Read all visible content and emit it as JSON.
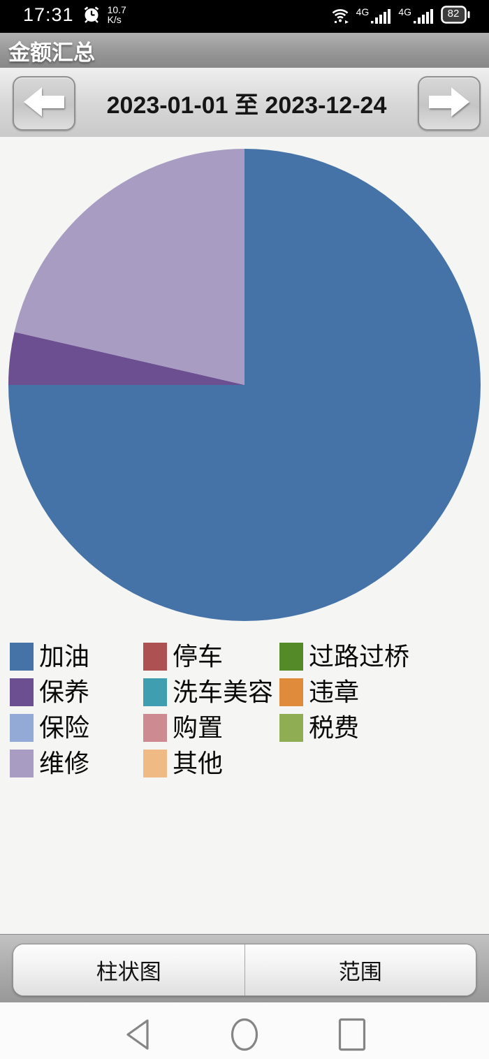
{
  "status_bar": {
    "time": "17:31",
    "net_speed_value": "10.7",
    "net_speed_unit": "K/s",
    "sim1_network": "4G",
    "sim2_network": "4G",
    "battery_percent": "82"
  },
  "header": {
    "title": "金额汇总"
  },
  "date_nav": {
    "range_text": "2023-01-01 至 2023-12-24"
  },
  "chart_data": {
    "type": "pie",
    "title": "金额汇总",
    "legend_position": "bottom-grid-3col",
    "start_angle_deg": 0,
    "direction": "clockwise",
    "series": [
      {
        "label": "加油",
        "color": "#4573a7",
        "percent": 75.0
      },
      {
        "label": "停车",
        "color": "#ae5153",
        "percent": 0
      },
      {
        "label": "过路过桥",
        "color": "#548b28",
        "percent": 0
      },
      {
        "label": "保养",
        "color": "#6b4f90",
        "percent": 3.6
      },
      {
        "label": "洗车美容",
        "color": "#3f9fb0",
        "percent": 0
      },
      {
        "label": "违章",
        "color": "#e08a3c",
        "percent": 0
      },
      {
        "label": "保险",
        "color": "#93a9d6",
        "percent": 0
      },
      {
        "label": "购置",
        "color": "#cd8a90",
        "percent": 0
      },
      {
        "label": "税费",
        "color": "#8fae53",
        "percent": 0
      },
      {
        "label": "维修",
        "color": "#a89cc3",
        "percent": 21.4
      },
      {
        "label": "其他",
        "color": "#f0ba85",
        "percent": 0
      }
    ]
  },
  "bottom_buttons": {
    "bar_chart_label": "柱状图",
    "range_label": "范围"
  },
  "colors": {
    "content_bg": "#f5f5f4",
    "pie_blue": "#4573a7",
    "pie_dark_purple": "#6b4f90",
    "pie_lavender": "#a89cc3"
  }
}
